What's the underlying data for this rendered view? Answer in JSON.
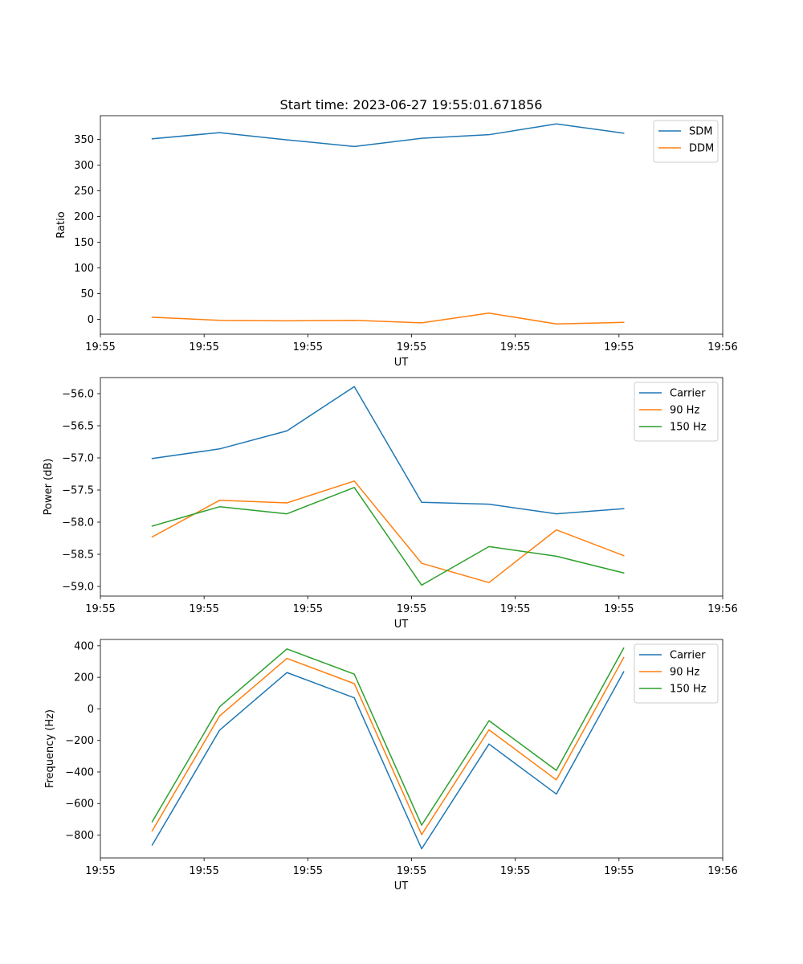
{
  "figure": {
    "title": "Start time: 2023-06-27 19:55:01.671856"
  },
  "colors": {
    "blue": "#1f77b4",
    "orange": "#ff7f0e",
    "green": "#2ca02c"
  },
  "chart_data": [
    {
      "type": "line",
      "title": "Start time: 2023-06-27 19:55:01.671856",
      "xlabel": "UT",
      "ylabel": "Ratio",
      "x": [
        1,
        2,
        3,
        4,
        5,
        6,
        7,
        8
      ],
      "xlim": [
        0.23,
        9.47
      ],
      "x_ticks": [
        {
          "value": 0.23,
          "label": "19:55"
        },
        {
          "value": 1.77,
          "label": "19:55"
        },
        {
          "value": 3.31,
          "label": "19:55"
        },
        {
          "value": 4.85,
          "label": "19:55"
        },
        {
          "value": 6.39,
          "label": "19:55"
        },
        {
          "value": 7.93,
          "label": "19:55"
        },
        {
          "value": 9.47,
          "label": "19:56"
        }
      ],
      "ylim": [
        -29,
        396
      ],
      "y_ticks": [
        0,
        50,
        100,
        150,
        200,
        250,
        300,
        350
      ],
      "legend_position": "upper-right",
      "series": [
        {
          "name": "SDM",
          "color": "#1f77b4",
          "values": [
            351,
            363,
            349,
            336,
            352,
            359,
            380,
            362
          ]
        },
        {
          "name": "DDM",
          "color": "#ff7f0e",
          "values": [
            4,
            -2,
            -3,
            -2,
            -7,
            12,
            -9,
            -6
          ]
        }
      ],
      "grid": false
    },
    {
      "type": "line",
      "xlabel": "UT",
      "ylabel": "Power (dB)",
      "x": [
        1,
        2,
        3,
        4,
        5,
        6,
        7,
        8
      ],
      "xlim": [
        0.23,
        9.47
      ],
      "x_ticks": [
        {
          "value": 0.23,
          "label": "19:55"
        },
        {
          "value": 1.77,
          "label": "19:55"
        },
        {
          "value": 3.31,
          "label": "19:55"
        },
        {
          "value": 4.85,
          "label": "19:55"
        },
        {
          "value": 6.39,
          "label": "19:55"
        },
        {
          "value": 7.93,
          "label": "19:55"
        },
        {
          "value": 9.47,
          "label": "19:56"
        }
      ],
      "ylim": [
        -59.15,
        -55.75
      ],
      "y_ticks": [
        -59.0,
        -58.5,
        -58.0,
        -57.5,
        -57.0,
        -56.5,
        -56.0
      ],
      "y_tick_decimals": 1,
      "legend_position": "upper-right",
      "series": [
        {
          "name": "Carrier",
          "color": "#1f77b4",
          "values": [
            -57.01,
            -56.86,
            -56.58,
            -55.89,
            -57.69,
            -57.72,
            -57.87,
            -57.79
          ]
        },
        {
          "name": "90 Hz",
          "color": "#ff7f0e",
          "values": [
            -58.23,
            -57.66,
            -57.7,
            -57.36,
            -58.64,
            -58.94,
            -58.12,
            -58.52
          ]
        },
        {
          "name": "150 Hz",
          "color": "#2ca02c",
          "values": [
            -58.06,
            -57.76,
            -57.87,
            -57.46,
            -58.98,
            -58.38,
            -58.53,
            -58.79
          ]
        }
      ],
      "grid": false
    },
    {
      "type": "line",
      "xlabel": "UT",
      "ylabel": "Frequency (Hz)",
      "x": [
        1,
        2,
        3,
        4,
        5,
        6,
        7,
        8
      ],
      "xlim": [
        0.23,
        9.47
      ],
      "x_ticks": [
        {
          "value": 0.23,
          "label": "19:55"
        },
        {
          "value": 1.77,
          "label": "19:55"
        },
        {
          "value": 3.31,
          "label": "19:55"
        },
        {
          "value": 4.85,
          "label": "19:55"
        },
        {
          "value": 6.39,
          "label": "19:55"
        },
        {
          "value": 7.93,
          "label": "19:55"
        },
        {
          "value": 9.47,
          "label": "19:56"
        }
      ],
      "ylim": [
        -945,
        440
      ],
      "y_ticks": [
        -800,
        -600,
        -400,
        -200,
        0,
        200,
        400
      ],
      "y_tick_decimals": 0,
      "legend_position": "upper-right",
      "series": [
        {
          "name": "Carrier",
          "color": "#1f77b4",
          "values": [
            -863,
            -135,
            230,
            70,
            -887,
            -223,
            -540,
            235
          ]
        },
        {
          "name": "90 Hz",
          "color": "#ff7f0e",
          "values": [
            -773,
            -45,
            320,
            160,
            -797,
            -133,
            -450,
            325
          ]
        },
        {
          "name": "150 Hz",
          "color": "#2ca02c",
          "values": [
            -715,
            13,
            380,
            220,
            -737,
            -75,
            -390,
            385
          ]
        }
      ],
      "grid": false
    }
  ]
}
